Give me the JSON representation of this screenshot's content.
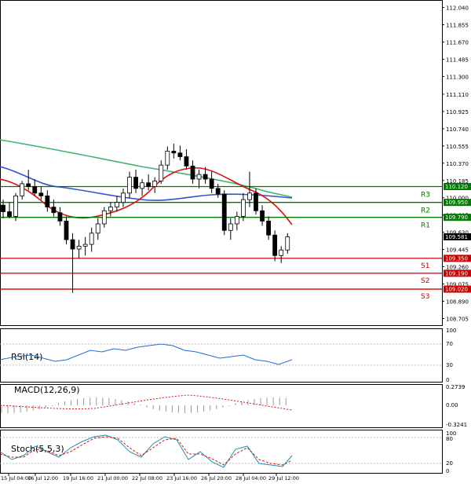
{
  "chart_data": {
    "type": "candlestick",
    "price_axis_ticks": [
      "112.040",
      "111.855",
      "111.670",
      "111.485",
      "111.300",
      "111.110",
      "110.925",
      "110.740",
      "110.555",
      "110.370",
      "110.185",
      "110.000",
      "109.815",
      "109.630",
      "109.445",
      "109.260",
      "109.075",
      "108.890",
      "108.705"
    ],
    "price_ylim": [
      108.65,
      112.07
    ],
    "time_labels": [
      "15 Jul 04:00",
      "16 Jul 12:00",
      "19 Jul 16:00",
      "21 Jul 00:00",
      "22 Jul 08:00",
      "23 Jul 16:00",
      "26 Jul 20:00",
      "28 Jul 04:00",
      "29 Jul 12:00"
    ],
    "levels": [
      {
        "name": "R3",
        "value": 110.12,
        "tag": "110.120",
        "color": "#007a00"
      },
      {
        "name": "R2",
        "value": 109.95,
        "tag": "109.950",
        "color": "#007a00"
      },
      {
        "name": "R1",
        "value": 109.79,
        "tag": "109.790",
        "color": "#007a00"
      },
      {
        "name": "S1",
        "value": 109.35,
        "tag": "109.350",
        "color": "#cc0000"
      },
      {
        "name": "S2",
        "value": 109.19,
        "tag": "109.190",
        "color": "#cc0000"
      },
      {
        "name": "S3",
        "value": 109.02,
        "tag": "109.020",
        "color": "#cc0000"
      }
    ],
    "last_price": {
      "value": 109.581,
      "tag": "109.581"
    },
    "candles": [
      [
        109.92,
        109.98,
        109.78,
        109.85
      ],
      [
        109.85,
        109.95,
        109.78,
        109.8
      ],
      [
        109.8,
        110.05,
        109.75,
        110.02
      ],
      [
        110.02,
        110.18,
        109.98,
        110.15
      ],
      [
        110.15,
        110.3,
        110.08,
        110.12
      ],
      [
        110.12,
        110.2,
        110.02,
        110.05
      ],
      [
        110.05,
        110.12,
        109.98,
        110.02
      ],
      [
        110.02,
        110.08,
        109.85,
        109.9
      ],
      [
        109.9,
        109.98,
        109.8,
        109.84
      ],
      [
        109.84,
        109.9,
        109.7,
        109.75
      ],
      [
        109.75,
        109.8,
        109.5,
        109.55
      ],
      [
        109.55,
        109.62,
        108.98,
        109.45
      ],
      [
        109.45,
        109.55,
        109.35,
        109.48
      ],
      [
        109.48,
        109.58,
        109.38,
        109.5
      ],
      [
        109.5,
        109.68,
        109.42,
        109.62
      ],
      [
        109.62,
        109.78,
        109.55,
        109.72
      ],
      [
        109.72,
        109.9,
        109.68,
        109.86
      ],
      [
        109.86,
        109.95,
        109.8,
        109.9
      ],
      [
        109.9,
        110.02,
        109.85,
        109.95
      ],
      [
        109.95,
        110.1,
        109.9,
        110.05
      ],
      [
        110.05,
        110.28,
        110.0,
        110.22
      ],
      [
        110.22,
        110.3,
        110.05,
        110.1
      ],
      [
        110.1,
        110.2,
        110.02,
        110.16
      ],
      [
        110.16,
        110.25,
        110.08,
        110.12
      ],
      [
        110.12,
        110.22,
        110.05,
        110.18
      ],
      [
        110.18,
        110.4,
        110.15,
        110.35
      ],
      [
        110.35,
        110.55,
        110.3,
        110.5
      ],
      [
        110.5,
        110.58,
        110.42,
        110.48
      ],
      [
        110.48,
        110.56,
        110.4,
        110.44
      ],
      [
        110.44,
        110.52,
        110.3,
        110.34
      ],
      [
        110.34,
        110.4,
        110.15,
        110.2
      ],
      [
        110.2,
        110.3,
        110.1,
        110.25
      ],
      [
        110.25,
        110.33,
        110.15,
        110.2
      ],
      [
        110.2,
        110.28,
        110.05,
        110.1
      ],
      [
        110.1,
        110.15,
        110.0,
        110.04
      ],
      [
        110.04,
        110.08,
        109.6,
        109.65
      ],
      [
        109.65,
        109.78,
        109.55,
        109.72
      ],
      [
        109.72,
        109.85,
        109.65,
        109.8
      ],
      [
        109.8,
        110.05,
        109.75,
        109.98
      ],
      [
        109.98,
        110.28,
        109.9,
        110.05
      ],
      [
        110.05,
        110.1,
        109.82,
        109.86
      ],
      [
        109.86,
        109.92,
        109.7,
        109.75
      ],
      [
        109.75,
        109.8,
        109.55,
        109.6
      ],
      [
        109.6,
        109.65,
        109.32,
        109.38
      ],
      [
        109.38,
        109.48,
        109.3,
        109.44
      ],
      [
        109.44,
        109.62,
        109.4,
        109.58
      ]
    ]
  }
}
